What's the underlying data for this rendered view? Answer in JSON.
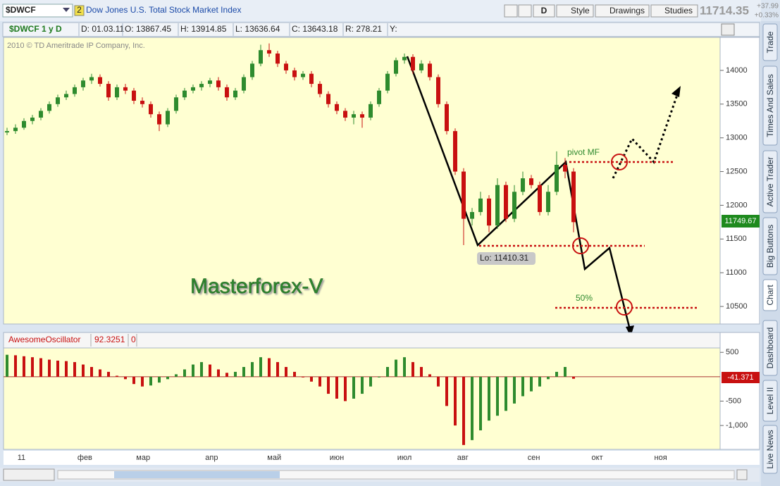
{
  "toolbar": {
    "symbol": "$DWCF",
    "link_badge": "2",
    "description": "Dow Jones U.S. Total Stock Market Index",
    "buttons": [
      "D",
      "Style",
      "Drawings",
      "Studies"
    ],
    "last": "11714.35",
    "change": "+37.99",
    "change_pct": "+0.33%"
  },
  "side_tabs": [
    "Trade",
    "Times And Sales",
    "Active Trader",
    "Big Buttons",
    "Chart",
    "Dashboard",
    "Level II",
    "Live News"
  ],
  "info_bar": [
    "$DWCF 1 y D",
    "D: 01.03.11",
    "O: 13867.45",
    "H: 13914.85",
    "L: 13636.64",
    "C: 13643.18",
    "R: 278.21",
    "Y:"
  ],
  "chart": {
    "type": "candlestick",
    "copyright": "2010 © TD Ameritrade IP Company, Inc.",
    "months": [
      "11",
      "фев",
      "мар",
      "апр",
      "май",
      "июн",
      "июл",
      "авг",
      "сен",
      "окт",
      "ноя"
    ],
    "candles": [
      [
        13080,
        13150,
        13040,
        13100
      ],
      [
        13100,
        13200,
        13060,
        13150
      ],
      [
        13150,
        13290,
        13120,
        13250
      ],
      [
        13250,
        13340,
        13200,
        13300
      ],
      [
        13300,
        13440,
        13260,
        13400
      ],
      [
        13400,
        13540,
        13360,
        13500
      ],
      [
        13500,
        13640,
        13460,
        13600
      ],
      [
        13600,
        13700,
        13560,
        13650
      ],
      [
        13650,
        13790,
        13610,
        13750
      ],
      [
        13750,
        13890,
        13700,
        13850
      ],
      [
        13850,
        13950,
        13800,
        13900
      ],
      [
        13900,
        13940,
        13760,
        13800
      ],
      [
        13800,
        13840,
        13550,
        13600
      ],
      [
        13600,
        13790,
        13560,
        13750
      ],
      [
        13750,
        13800,
        13650,
        13700
      ],
      [
        13700,
        13740,
        13500,
        13550
      ],
      [
        13550,
        13600,
        13450,
        13500
      ],
      [
        13500,
        13540,
        13300,
        13350
      ],
      [
        13350,
        13390,
        13100,
        13200
      ],
      [
        13200,
        13440,
        13160,
        13400
      ],
      [
        13400,
        13640,
        13360,
        13600
      ],
      [
        13600,
        13740,
        13560,
        13700
      ],
      [
        13700,
        13790,
        13660,
        13750
      ],
      [
        13750,
        13840,
        13700,
        13800
      ],
      [
        13800,
        13890,
        13750,
        13850
      ],
      [
        13850,
        13900,
        13700,
        13750
      ],
      [
        13750,
        13790,
        13550,
        13600
      ],
      [
        13600,
        13740,
        13560,
        13700
      ],
      [
        13700,
        13940,
        13660,
        13900
      ],
      [
        13900,
        14140,
        13860,
        14100
      ],
      [
        14100,
        14380,
        14060,
        14300
      ],
      [
        14300,
        14400,
        14200,
        14250
      ],
      [
        14250,
        14290,
        14050,
        14100
      ],
      [
        14100,
        14140,
        13950,
        14000
      ],
      [
        14000,
        14040,
        13850,
        13900
      ],
      [
        13900,
        13990,
        13860,
        13950
      ],
      [
        13950,
        13990,
        13750,
        13800
      ],
      [
        13800,
        13840,
        13600,
        13650
      ],
      [
        13650,
        13690,
        13450,
        13500
      ],
      [
        13500,
        13540,
        13350,
        13400
      ],
      [
        13400,
        13440,
        13250,
        13300
      ],
      [
        13300,
        13400,
        13200,
        13350
      ],
      [
        13350,
        13390,
        13150,
        13300
      ],
      [
        13300,
        13540,
        13260,
        13500
      ],
      [
        13500,
        13740,
        13460,
        13700
      ],
      [
        13700,
        13990,
        13660,
        13950
      ],
      [
        13950,
        14190,
        13910,
        14150
      ],
      [
        14150,
        14250,
        14100,
        14200
      ],
      [
        14200,
        14240,
        13950,
        14000
      ],
      [
        14000,
        14150,
        13960,
        14100
      ],
      [
        14100,
        14140,
        13850,
        13900
      ],
      [
        13900,
        13940,
        13450,
        13500
      ],
      [
        13500,
        13540,
        13050,
        13100
      ],
      [
        13100,
        13140,
        12450,
        12500
      ],
      [
        12500,
        12550,
        11410,
        11800
      ],
      [
        11800,
        11960,
        11700,
        11900
      ],
      [
        11900,
        12200,
        11850,
        12100
      ],
      [
        12100,
        12150,
        11600,
        11700
      ],
      [
        11700,
        12400,
        11650,
        12300
      ],
      [
        12300,
        12350,
        11750,
        11800
      ],
      [
        11800,
        12300,
        11750,
        12200
      ],
      [
        12200,
        12500,
        12150,
        12400
      ],
      [
        12400,
        12450,
        12250,
        12300
      ],
      [
        12300,
        12350,
        11850,
        11900
      ],
      [
        11900,
        12300,
        11850,
        12200
      ],
      [
        12200,
        12800,
        12150,
        12600
      ],
      [
        12600,
        12700,
        12400,
        12500
      ],
      [
        12500,
        12550,
        11600,
        11750
      ]
    ],
    "up_color": "#2e8b2e",
    "down_color": "#c81010",
    "ylim": [
      10240,
      14490
    ],
    "yticks": [
      10500,
      11000,
      11500,
      12000,
      12500,
      13000,
      13500,
      14000
    ],
    "price_label": "11749.67",
    "annotations": {
      "watermark": "Masterforex-V",
      "pivot": "pivot MF",
      "fifty": "50%",
      "low": "Lo: 11410.31"
    }
  },
  "oscillator": {
    "type": "bar",
    "name": "AwesomeOscillator",
    "header_value": "92.3251",
    "header_zero": "0",
    "values": [
      450,
      440,
      420,
      400,
      380,
      350,
      330,
      320,
      300,
      250,
      200,
      150,
      100,
      20,
      -50,
      -150,
      -200,
      -180,
      -120,
      -50,
      50,
      150,
      250,
      300,
      250,
      150,
      80,
      100,
      200,
      300,
      400,
      380,
      300,
      200,
      100,
      0,
      -100,
      -200,
      -350,
      -450,
      -500,
      -450,
      -350,
      -200,
      0,
      200,
      350,
      400,
      300,
      200,
      50,
      -200,
      -600,
      -1000,
      -1400,
      -1300,
      -1100,
      -900,
      -800,
      -700,
      -550,
      -400,
      -300,
      -200,
      -50,
      100,
      200,
      -41.371
    ],
    "ylim": [
      -1490,
      590
    ],
    "yticks": [
      500,
      -500,
      {
        "value": -1000,
        "label": "-1,000"
      }
    ],
    "value_label": "-41.371"
  }
}
